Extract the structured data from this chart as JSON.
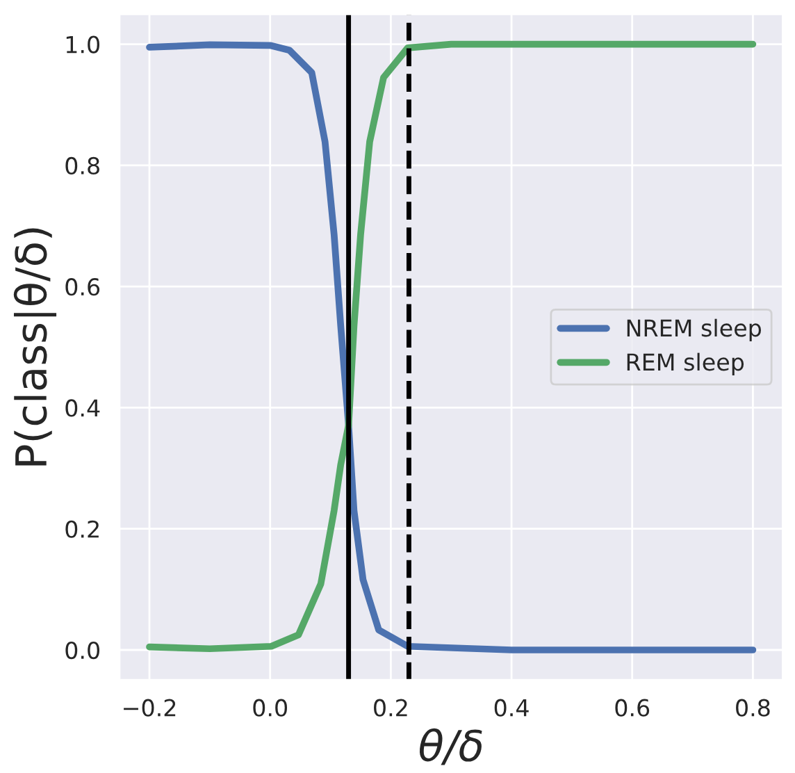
{
  "chart_data": {
    "type": "line",
    "xlabel": "θ/δ",
    "ylabel": "P(class|θ/δ)",
    "xlim": [
      -0.25,
      0.85
    ],
    "xticks": [
      {
        "value": -0.2,
        "label": "−0.2"
      },
      {
        "value": 0.0,
        "label": "0.0"
      },
      {
        "value": 0.2,
        "label": "0.2"
      },
      {
        "value": 0.4,
        "label": "0.4"
      },
      {
        "value": 0.6,
        "label": "0.6"
      },
      {
        "value": 0.8,
        "label": "0.8"
      }
    ],
    "ylim": [
      -0.05,
      1.05
    ],
    "yticks": [
      {
        "value": 0.0,
        "label": "0.0"
      },
      {
        "value": 0.2,
        "label": "0.2"
      },
      {
        "value": 0.4,
        "label": "0.4"
      },
      {
        "value": 0.6,
        "label": "0.6"
      },
      {
        "value": 0.8,
        "label": "0.8"
      },
      {
        "value": 1.0,
        "label": "1.0"
      }
    ],
    "grid": true,
    "legend": "center right",
    "marker": "none",
    "line_style": "solid",
    "series": [
      {
        "name": "NREM sleep",
        "color": "#4c72b0",
        "x": [
          -0.2,
          -0.1,
          0.0,
          0.032,
          0.069,
          0.091,
          0.106,
          0.117,
          0.13,
          0.139,
          0.154,
          0.18,
          0.228,
          0.4,
          0.8
        ],
        "values": [
          0.995,
          0.999,
          0.998,
          0.99,
          0.953,
          0.839,
          0.686,
          0.535,
          0.371,
          0.23,
          0.116,
          0.033,
          0.006,
          0.0,
          0.0
        ]
      },
      {
        "name": "REM sleep",
        "color": "#55a868",
        "x": [
          -0.2,
          -0.1,
          0.002,
          0.047,
          0.084,
          0.106,
          0.117,
          0.13,
          0.139,
          0.15,
          0.165,
          0.188,
          0.228,
          0.3,
          0.8
        ],
        "values": [
          0.005,
          0.002,
          0.006,
          0.025,
          0.109,
          0.23,
          0.306,
          0.371,
          0.535,
          0.686,
          0.839,
          0.945,
          0.994,
          1.0,
          1.0
        ]
      }
    ],
    "ref_lines": [
      {
        "axis": "x",
        "value": 0.13,
        "color": "#000000",
        "line_style": "solid"
      },
      {
        "axis": "x",
        "value": 0.23,
        "color": "#000000",
        "line_style": "dashed"
      }
    ]
  }
}
